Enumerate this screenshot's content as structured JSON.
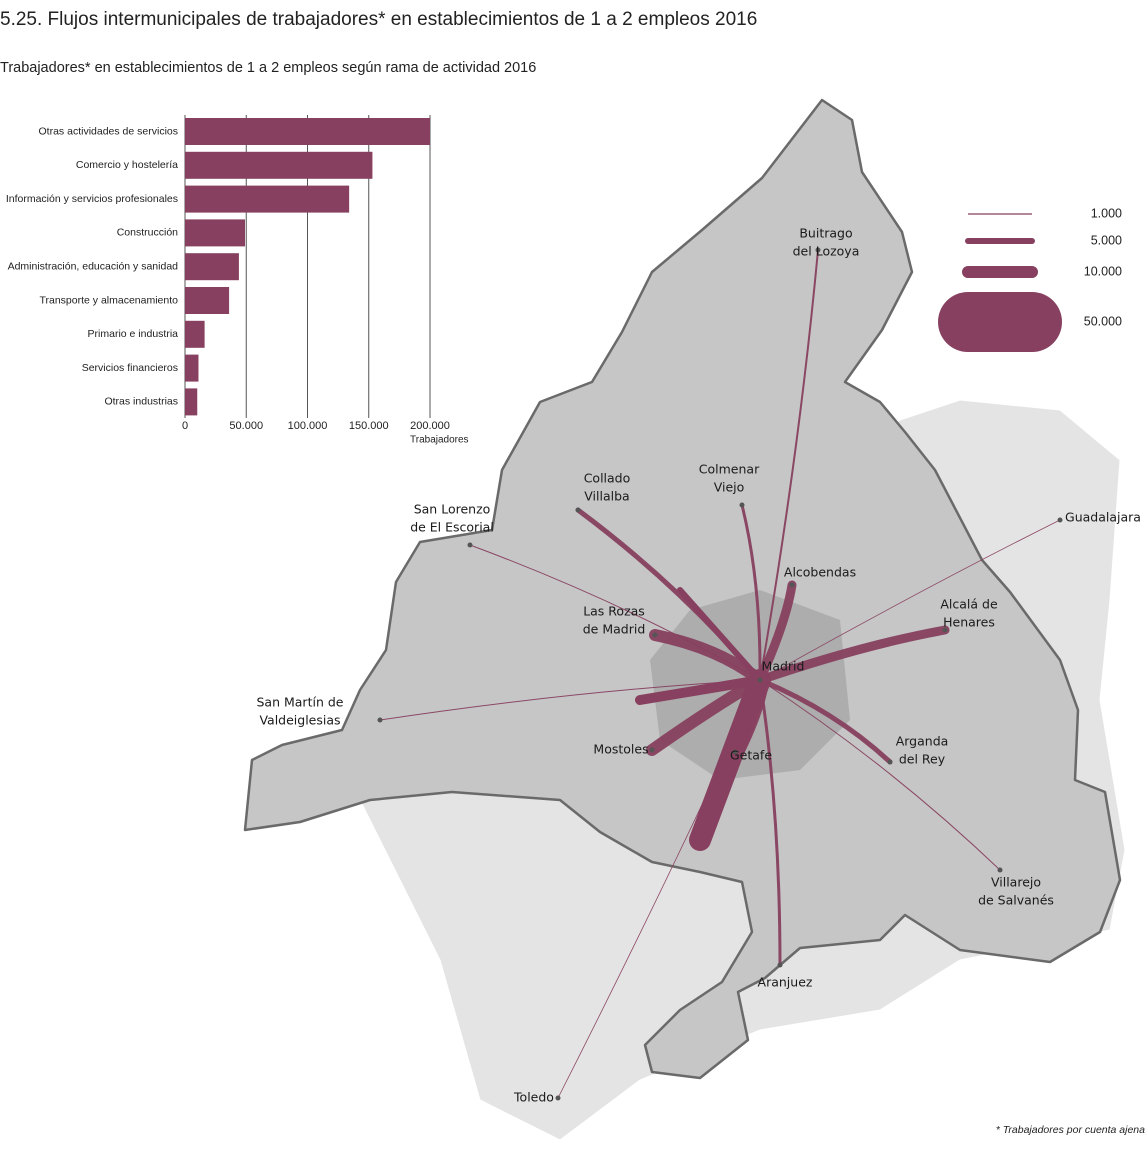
{
  "title": "5.25. Flujos intermunicipales de trabajadores* en establecimientos de 1 a 2 empleos 2016",
  "subtitle": "Trabajadores* en establecimientos de 1 a 2 empleos según rama de actividad 2016",
  "chart_data": {
    "type": "hbar",
    "categories": [
      "Otras actividades de servicios",
      "Comercio y hostelería",
      "Información y servicios profesionales",
      "Construcción",
      "Administración, educación y sanidad",
      "Transporte y almacenamiento",
      "Primario e industria",
      "Servicios financieros",
      "Otras industrias"
    ],
    "values": [
      200000,
      153000,
      134000,
      49000,
      44000,
      36000,
      16000,
      11000,
      10000
    ],
    "color": "#87405f",
    "xlabel": "Trabajadores",
    "xlim": [
      0,
      200000
    ],
    "xticks": [
      0,
      {
        "value": 50000,
        "label": "50.000"
      },
      {
        "value": 100000,
        "label": "100.000"
      },
      {
        "value": 150000,
        "label": "150.000"
      },
      {
        "value": 200000,
        "label": "200.000"
      }
    ],
    "grid": true
  },
  "map": {
    "flow_color": "#87405f",
    "legend": [
      {
        "value": 1000,
        "label": "1.000"
      },
      {
        "value": 5000,
        "label": "5.000"
      },
      {
        "value": 10000,
        "label": "10.000"
      },
      {
        "value": 50000,
        "label": "50.000"
      }
    ],
    "places": [
      {
        "label": [
          "Buitrago",
          "del Lozoya"
        ]
      },
      {
        "label": [
          "Colmenar",
          "Viejo"
        ]
      },
      {
        "label": [
          "Collado",
          "Villalba"
        ]
      },
      {
        "label": [
          "San Lorenzo",
          "de El Escorial"
        ]
      },
      {
        "label": [
          "Guadalajara"
        ]
      },
      {
        "label": [
          "Alcobendas"
        ]
      },
      {
        "label": [
          "Alcalá de",
          "Henares"
        ]
      },
      {
        "label": [
          "Las Rozas",
          "de Madrid"
        ]
      },
      {
        "label": [
          "Madrid"
        ]
      },
      {
        "label": [
          "San Martín de",
          "Valdeiglesias"
        ]
      },
      {
        "label": [
          "Arganda",
          "del Rey"
        ]
      },
      {
        "label": [
          "Mostoles"
        ]
      },
      {
        "label": [
          "Getafe"
        ]
      },
      {
        "label": [
          "Villarejo",
          "de Salvanés"
        ]
      },
      {
        "label": [
          "Aranjuez"
        ]
      },
      {
        "label": [
          "Toledo"
        ]
      }
    ]
  },
  "footnote": "* Trabajadores por cuenta ajena"
}
